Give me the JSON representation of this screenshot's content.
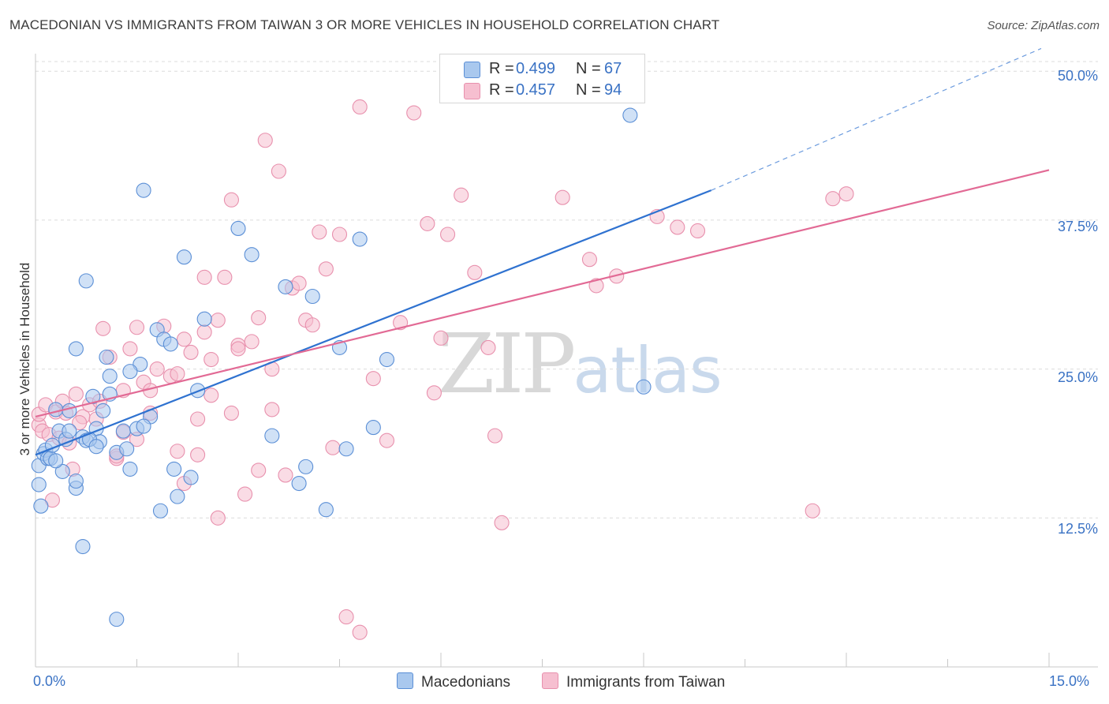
{
  "title": "MACEDONIAN VS IMMIGRANTS FROM TAIWAN 3 OR MORE VEHICLES IN HOUSEHOLD CORRELATION CHART",
  "source": "Source: ZipAtlas.com",
  "watermark": {
    "zip": "ZIP",
    "atlas": "atlas"
  },
  "legend_top": [
    {
      "r_label": "R =",
      "r_value": "0.499",
      "n_label": "N =",
      "n_value": "67"
    },
    {
      "r_label": "R =",
      "r_value": "0.457",
      "n_label": "N =",
      "n_value": "94"
    }
  ],
  "legend_bottom": [
    "Macedonians",
    "Immigrants from Taiwan"
  ],
  "colors": {
    "blue_fill": "#a9c8ee",
    "blue_stroke": "#5b8fd6",
    "blue_line": "#2f72d0",
    "pink_fill": "#f6bfd0",
    "pink_stroke": "#e890ad",
    "pink_line": "#e26a95",
    "tick_text": "#3a72c4",
    "grid": "#dcdcdc"
  },
  "chart_data": {
    "type": "scatter",
    "title": "MACEDONIAN VS IMMIGRANTS FROM TAIWAN 3 OR MORE VEHICLES IN HOUSEHOLD CORRELATION CHART",
    "xlabel": "",
    "ylabel": "3 or more Vehicles in Household",
    "xlim": [
      0,
      15
    ],
    "ylim": [
      0,
      52
    ],
    "x_tick_labels": [
      "0.0%",
      "15.0%"
    ],
    "y_tick_labels": [
      "12.5%",
      "25.0%",
      "37.5%",
      "50.0%"
    ],
    "y_ticks": [
      12.5,
      25.0,
      37.5,
      50.0
    ],
    "grid": true,
    "legend_position": "top-center",
    "series": [
      {
        "name": "Macedonians",
        "r": 0.499,
        "n": 67,
        "trend": {
          "x": [
            0,
            10.0
          ],
          "y": [
            17.8,
            40.0
          ],
          "dashed_to": [
            15,
            52.3
          ]
        },
        "points": [
          [
            0.0,
            16.9
          ],
          [
            0.05,
            15.3
          ],
          [
            0.08,
            13.5
          ],
          [
            0.12,
            17.9
          ],
          [
            0.15,
            18.2
          ],
          [
            0.18,
            17.5
          ],
          [
            0.22,
            17.5
          ],
          [
            0.25,
            18.6
          ],
          [
            0.3,
            21.6
          ],
          [
            0.35,
            19.8
          ],
          [
            0.45,
            19.1
          ],
          [
            0.5,
            19.8
          ],
          [
            0.6,
            26.7
          ],
          [
            0.7,
            19.3
          ],
          [
            0.75,
            19.0
          ],
          [
            0.85,
            22.7
          ],
          [
            0.9,
            20.0
          ],
          [
            0.95,
            18.9
          ],
          [
            1.0,
            21.5
          ],
          [
            0.4,
            16.4
          ],
          [
            0.6,
            15.0
          ],
          [
            0.8,
            19.1
          ],
          [
            1.05,
            26.0
          ],
          [
            1.1,
            24.4
          ],
          [
            1.2,
            18.0
          ],
          [
            1.3,
            19.8
          ],
          [
            1.35,
            18.3
          ],
          [
            1.4,
            16.6
          ],
          [
            1.5,
            20.0
          ],
          [
            1.55,
            25.4
          ],
          [
            1.6,
            40.0
          ],
          [
            1.7,
            21.0
          ],
          [
            1.8,
            28.3
          ],
          [
            1.85,
            13.1
          ],
          [
            1.9,
            27.5
          ],
          [
            2.0,
            27.1
          ],
          [
            2.05,
            16.6
          ],
          [
            2.1,
            14.3
          ],
          [
            2.2,
            34.4
          ],
          [
            2.3,
            15.9
          ],
          [
            2.5,
            29.2
          ],
          [
            3.0,
            36.8
          ],
          [
            3.2,
            34.6
          ],
          [
            3.5,
            19.4
          ],
          [
            3.7,
            31.9
          ],
          [
            3.9,
            15.4
          ],
          [
            4.0,
            16.8
          ],
          [
            4.1,
            31.1
          ],
          [
            4.3,
            13.2
          ],
          [
            4.5,
            26.8
          ],
          [
            4.6,
            18.3
          ],
          [
            4.8,
            35.9
          ],
          [
            5.0,
            20.1
          ],
          [
            5.2,
            25.8
          ],
          [
            0.7,
            10.1
          ],
          [
            1.2,
            4.0
          ],
          [
            0.75,
            32.4
          ],
          [
            1.6,
            20.2
          ],
          [
            9.0,
            23.5
          ],
          [
            8.8,
            46.3
          ],
          [
            2.4,
            23.2
          ],
          [
            1.4,
            24.8
          ],
          [
            0.5,
            21.5
          ],
          [
            0.9,
            18.5
          ],
          [
            0.3,
            17.3
          ],
          [
            1.1,
            22.9
          ],
          [
            0.6,
            15.6
          ]
        ]
      },
      {
        "name": "Immigrants from Taiwan",
        "r": 0.457,
        "n": 94,
        "trend": {
          "x": [
            0,
            15
          ],
          "y": [
            21.0,
            41.7
          ]
        },
        "points": [
          [
            0.0,
            20.3
          ],
          [
            0.05,
            21.2
          ],
          [
            0.1,
            19.8
          ],
          [
            0.15,
            22.0
          ],
          [
            0.2,
            19.5
          ],
          [
            0.25,
            14.0
          ],
          [
            0.3,
            21.4
          ],
          [
            0.35,
            19.2
          ],
          [
            0.4,
            22.3
          ],
          [
            0.5,
            18.8
          ],
          [
            0.55,
            16.6
          ],
          [
            0.6,
            22.9
          ],
          [
            0.7,
            21.0
          ],
          [
            0.8,
            22.0
          ],
          [
            0.9,
            20.8
          ],
          [
            1.0,
            28.4
          ],
          [
            1.1,
            26.0
          ],
          [
            1.2,
            17.5
          ],
          [
            1.3,
            23.2
          ],
          [
            1.4,
            26.7
          ],
          [
            1.5,
            19.1
          ],
          [
            1.6,
            23.9
          ],
          [
            1.7,
            21.3
          ],
          [
            1.8,
            25.0
          ],
          [
            1.9,
            28.6
          ],
          [
            2.0,
            24.4
          ],
          [
            2.1,
            18.1
          ],
          [
            2.2,
            15.4
          ],
          [
            2.3,
            26.4
          ],
          [
            2.4,
            20.8
          ],
          [
            2.5,
            28.1
          ],
          [
            2.6,
            25.8
          ],
          [
            2.7,
            12.5
          ],
          [
            2.8,
            32.7
          ],
          [
            2.9,
            21.3
          ],
          [
            3.0,
            27.0
          ],
          [
            3.1,
            14.5
          ],
          [
            3.2,
            27.3
          ],
          [
            3.3,
            29.3
          ],
          [
            3.4,
            44.2
          ],
          [
            3.5,
            25.0
          ],
          [
            3.6,
            41.6
          ],
          [
            3.7,
            16.1
          ],
          [
            3.8,
            31.8
          ],
          [
            3.9,
            32.2
          ],
          [
            4.0,
            29.1
          ],
          [
            4.1,
            28.7
          ],
          [
            4.2,
            36.5
          ],
          [
            4.4,
            18.4
          ],
          [
            4.5,
            36.3
          ],
          [
            4.8,
            47.0
          ],
          [
            5.0,
            24.2
          ],
          [
            5.4,
            28.9
          ],
          [
            5.6,
            46.5
          ],
          [
            5.8,
            37.2
          ],
          [
            6.0,
            27.6
          ],
          [
            6.1,
            36.3
          ],
          [
            6.3,
            39.6
          ],
          [
            6.5,
            33.1
          ],
          [
            6.7,
            26.8
          ],
          [
            6.9,
            12.1
          ],
          [
            7.8,
            39.4
          ],
          [
            8.2,
            34.2
          ],
          [
            8.3,
            32.0
          ],
          [
            8.6,
            32.8
          ],
          [
            9.2,
            37.8
          ],
          [
            9.5,
            36.9
          ],
          [
            9.8,
            36.6
          ],
          [
            11.8,
            39.3
          ],
          [
            12.0,
            39.7
          ],
          [
            11.5,
            13.1
          ],
          [
            4.8,
            2.9
          ],
          [
            4.6,
            4.2
          ],
          [
            1.2,
            17.7
          ],
          [
            0.45,
            21.3
          ],
          [
            0.65,
            20.5
          ],
          [
            2.1,
            24.6
          ],
          [
            1.7,
            23.2
          ],
          [
            2.6,
            22.8
          ],
          [
            3.3,
            16.5
          ],
          [
            2.9,
            39.2
          ],
          [
            1.3,
            19.7
          ],
          [
            2.4,
            17.8
          ],
          [
            3.0,
            26.7
          ],
          [
            3.5,
            21.6
          ],
          [
            6.8,
            19.4
          ],
          [
            5.9,
            23.0
          ],
          [
            5.2,
            19.0
          ],
          [
            2.5,
            32.7
          ],
          [
            1.5,
            28.5
          ],
          [
            2.2,
            27.5
          ],
          [
            0.95,
            22.3
          ],
          [
            4.3,
            33.4
          ],
          [
            2.7,
            29.1
          ]
        ]
      }
    ]
  }
}
